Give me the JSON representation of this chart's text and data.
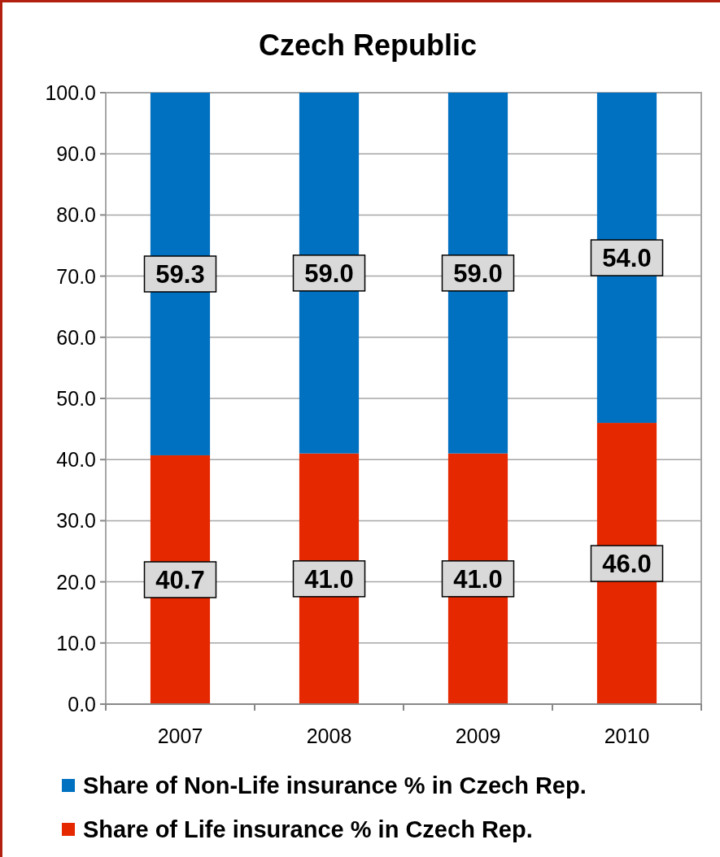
{
  "chart_data": {
    "type": "bar",
    "title": "Czech Republic",
    "categories": [
      "2007",
      "2008",
      "2009",
      "2010"
    ],
    "stacked": true,
    "series": [
      {
        "name": "Share of Life insurance % in Czech Rep.",
        "color": "#e52800",
        "values": [
          40.7,
          41.0,
          41.0,
          46.0
        ]
      },
      {
        "name": "Share of Non-Life insurance % in Czech Rep.",
        "color": "#0070c0",
        "values": [
          59.3,
          59.0,
          59.0,
          54.0
        ]
      }
    ],
    "ylim": [
      0,
      100
    ],
    "yticks": [
      {
        "value": 0,
        "label": "0.0"
      },
      {
        "value": 10,
        "label": "10.0"
      },
      {
        "value": 20,
        "label": "20.0"
      },
      {
        "value": 30,
        "label": "30.0"
      },
      {
        "value": 40,
        "label": "40.0"
      },
      {
        "value": 50,
        "label": "50.0"
      },
      {
        "value": 60,
        "label": "60.0"
      },
      {
        "value": 70,
        "label": "70.0"
      },
      {
        "value": 80,
        "label": "80.0"
      },
      {
        "value": 90,
        "label": "90.0"
      },
      {
        "value": 100,
        "label": "100.0"
      }
    ],
    "value_labels": [
      [
        "40.7",
        "41.0",
        "41.0",
        "46.0"
      ],
      [
        "59.3",
        "59.0",
        "59.0",
        "54.0"
      ]
    ],
    "grid": "y",
    "legend": "bottom"
  }
}
